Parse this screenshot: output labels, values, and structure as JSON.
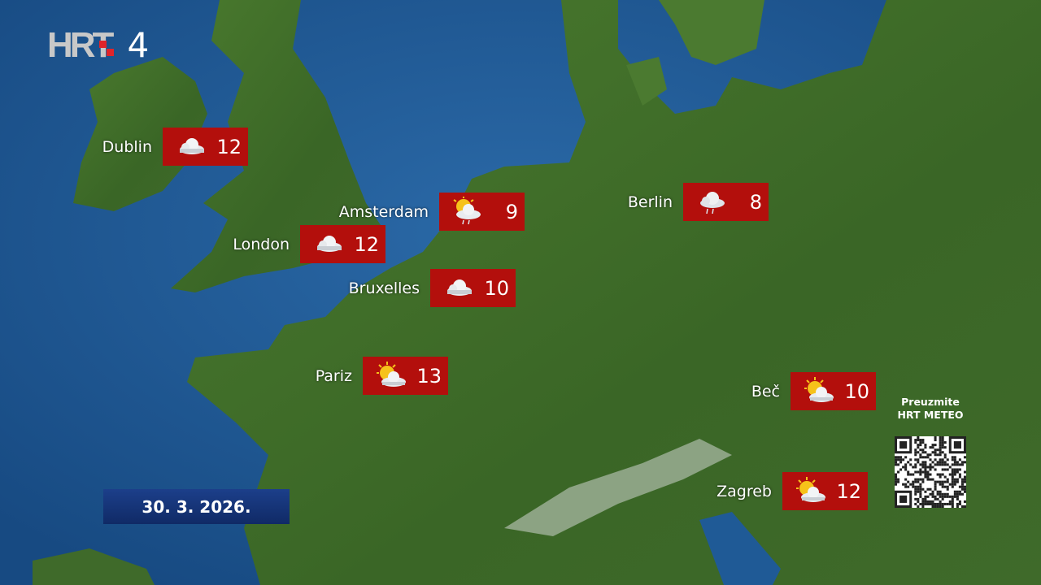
{
  "channel": {
    "logo_text": "HRT",
    "channel_number": "4"
  },
  "date": "30. 3. 2026.",
  "promo": {
    "line1": "Preuzmite",
    "line2": "HRT METEO"
  },
  "colors": {
    "box": "#b30f0c",
    "sea": "#1f5a96",
    "land": "#3f6e2a",
    "date_panel": "#1c3f8a"
  },
  "cities": [
    {
      "name": "Dublin",
      "temp": "12",
      "icon": "cloud-icon"
    },
    {
      "name": "Amsterdam",
      "temp": "9",
      "icon": "sun-cloud-rain-icon"
    },
    {
      "name": "London",
      "temp": "12",
      "icon": "cloud-icon"
    },
    {
      "name": "Bruxelles",
      "temp": "10",
      "icon": "cloud-icon"
    },
    {
      "name": "Pariz",
      "temp": "13",
      "icon": "sun-cloud-icon"
    },
    {
      "name": "Berlin",
      "temp": "8",
      "icon": "rain-cloud-icon"
    },
    {
      "name": "Beč",
      "temp": "10",
      "icon": "sun-cloud-icon"
    },
    {
      "name": "Zagreb",
      "temp": "12",
      "icon": "sun-cloud-icon"
    }
  ]
}
